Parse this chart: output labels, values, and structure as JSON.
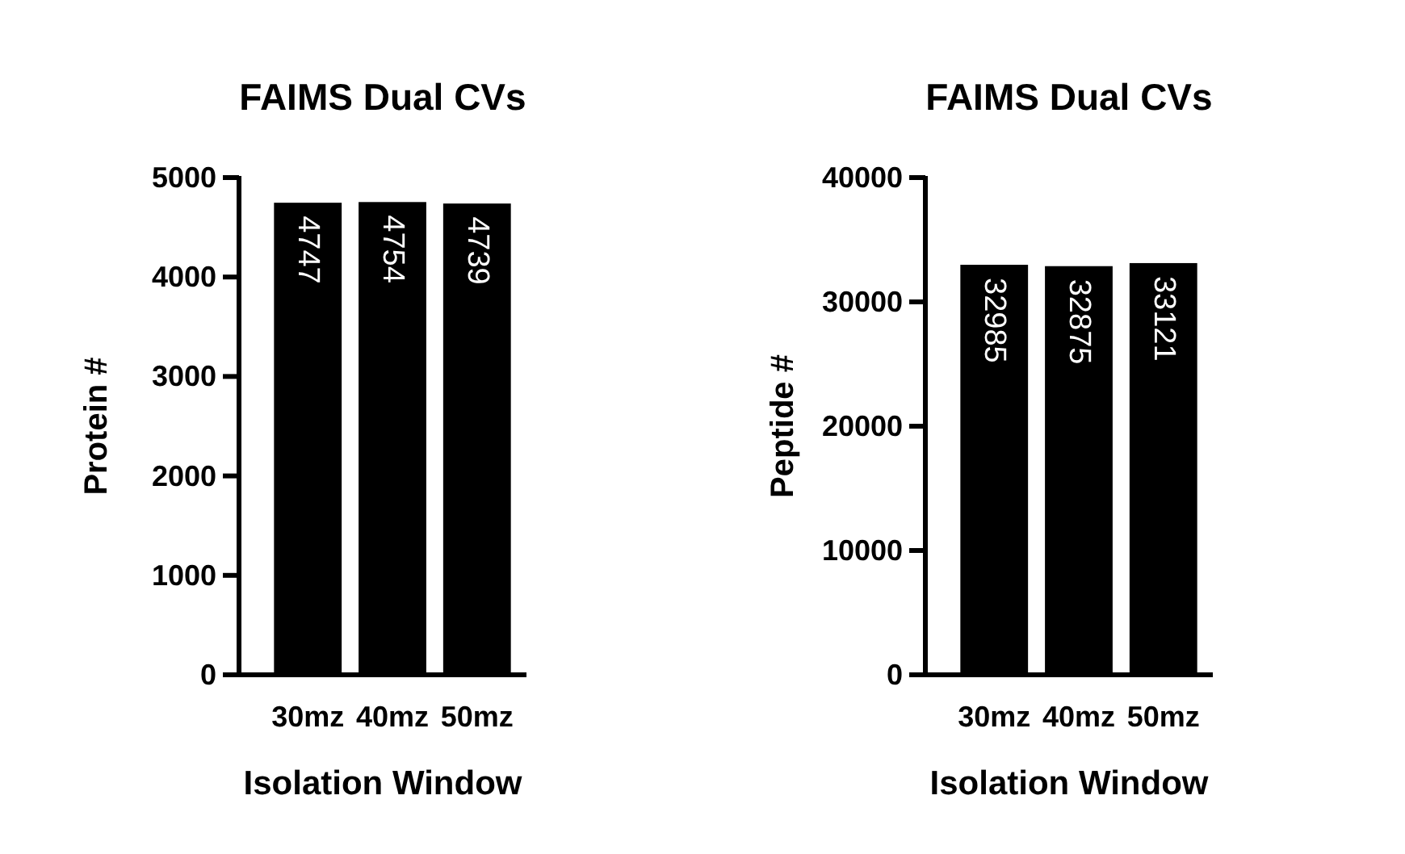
{
  "chart_data": [
    {
      "type": "bar",
      "title": "FAIMS Dual CVs",
      "xlabel": "Isolation Window",
      "ylabel": "Protein #",
      "categories": [
        "30mz",
        "40mz",
        "50mz"
      ],
      "values": [
        4747,
        4754,
        4739
      ],
      "color": "#000000",
      "ylim": [
        0,
        5000
      ],
      "yticks": [
        0,
        1000,
        2000,
        3000,
        4000,
        5000
      ],
      "data_labels": true
    },
    {
      "type": "bar",
      "title": "FAIMS Dual CVs",
      "xlabel": "Isolation Window",
      "ylabel": "Peptide #",
      "categories": [
        "30mz",
        "40mz",
        "50mz"
      ],
      "values": [
        32985,
        32875,
        33121
      ],
      "color": "#000000",
      "ylim": [
        0,
        40000
      ],
      "yticks": [
        0,
        10000,
        20000,
        30000,
        40000
      ],
      "data_labels": true
    }
  ]
}
